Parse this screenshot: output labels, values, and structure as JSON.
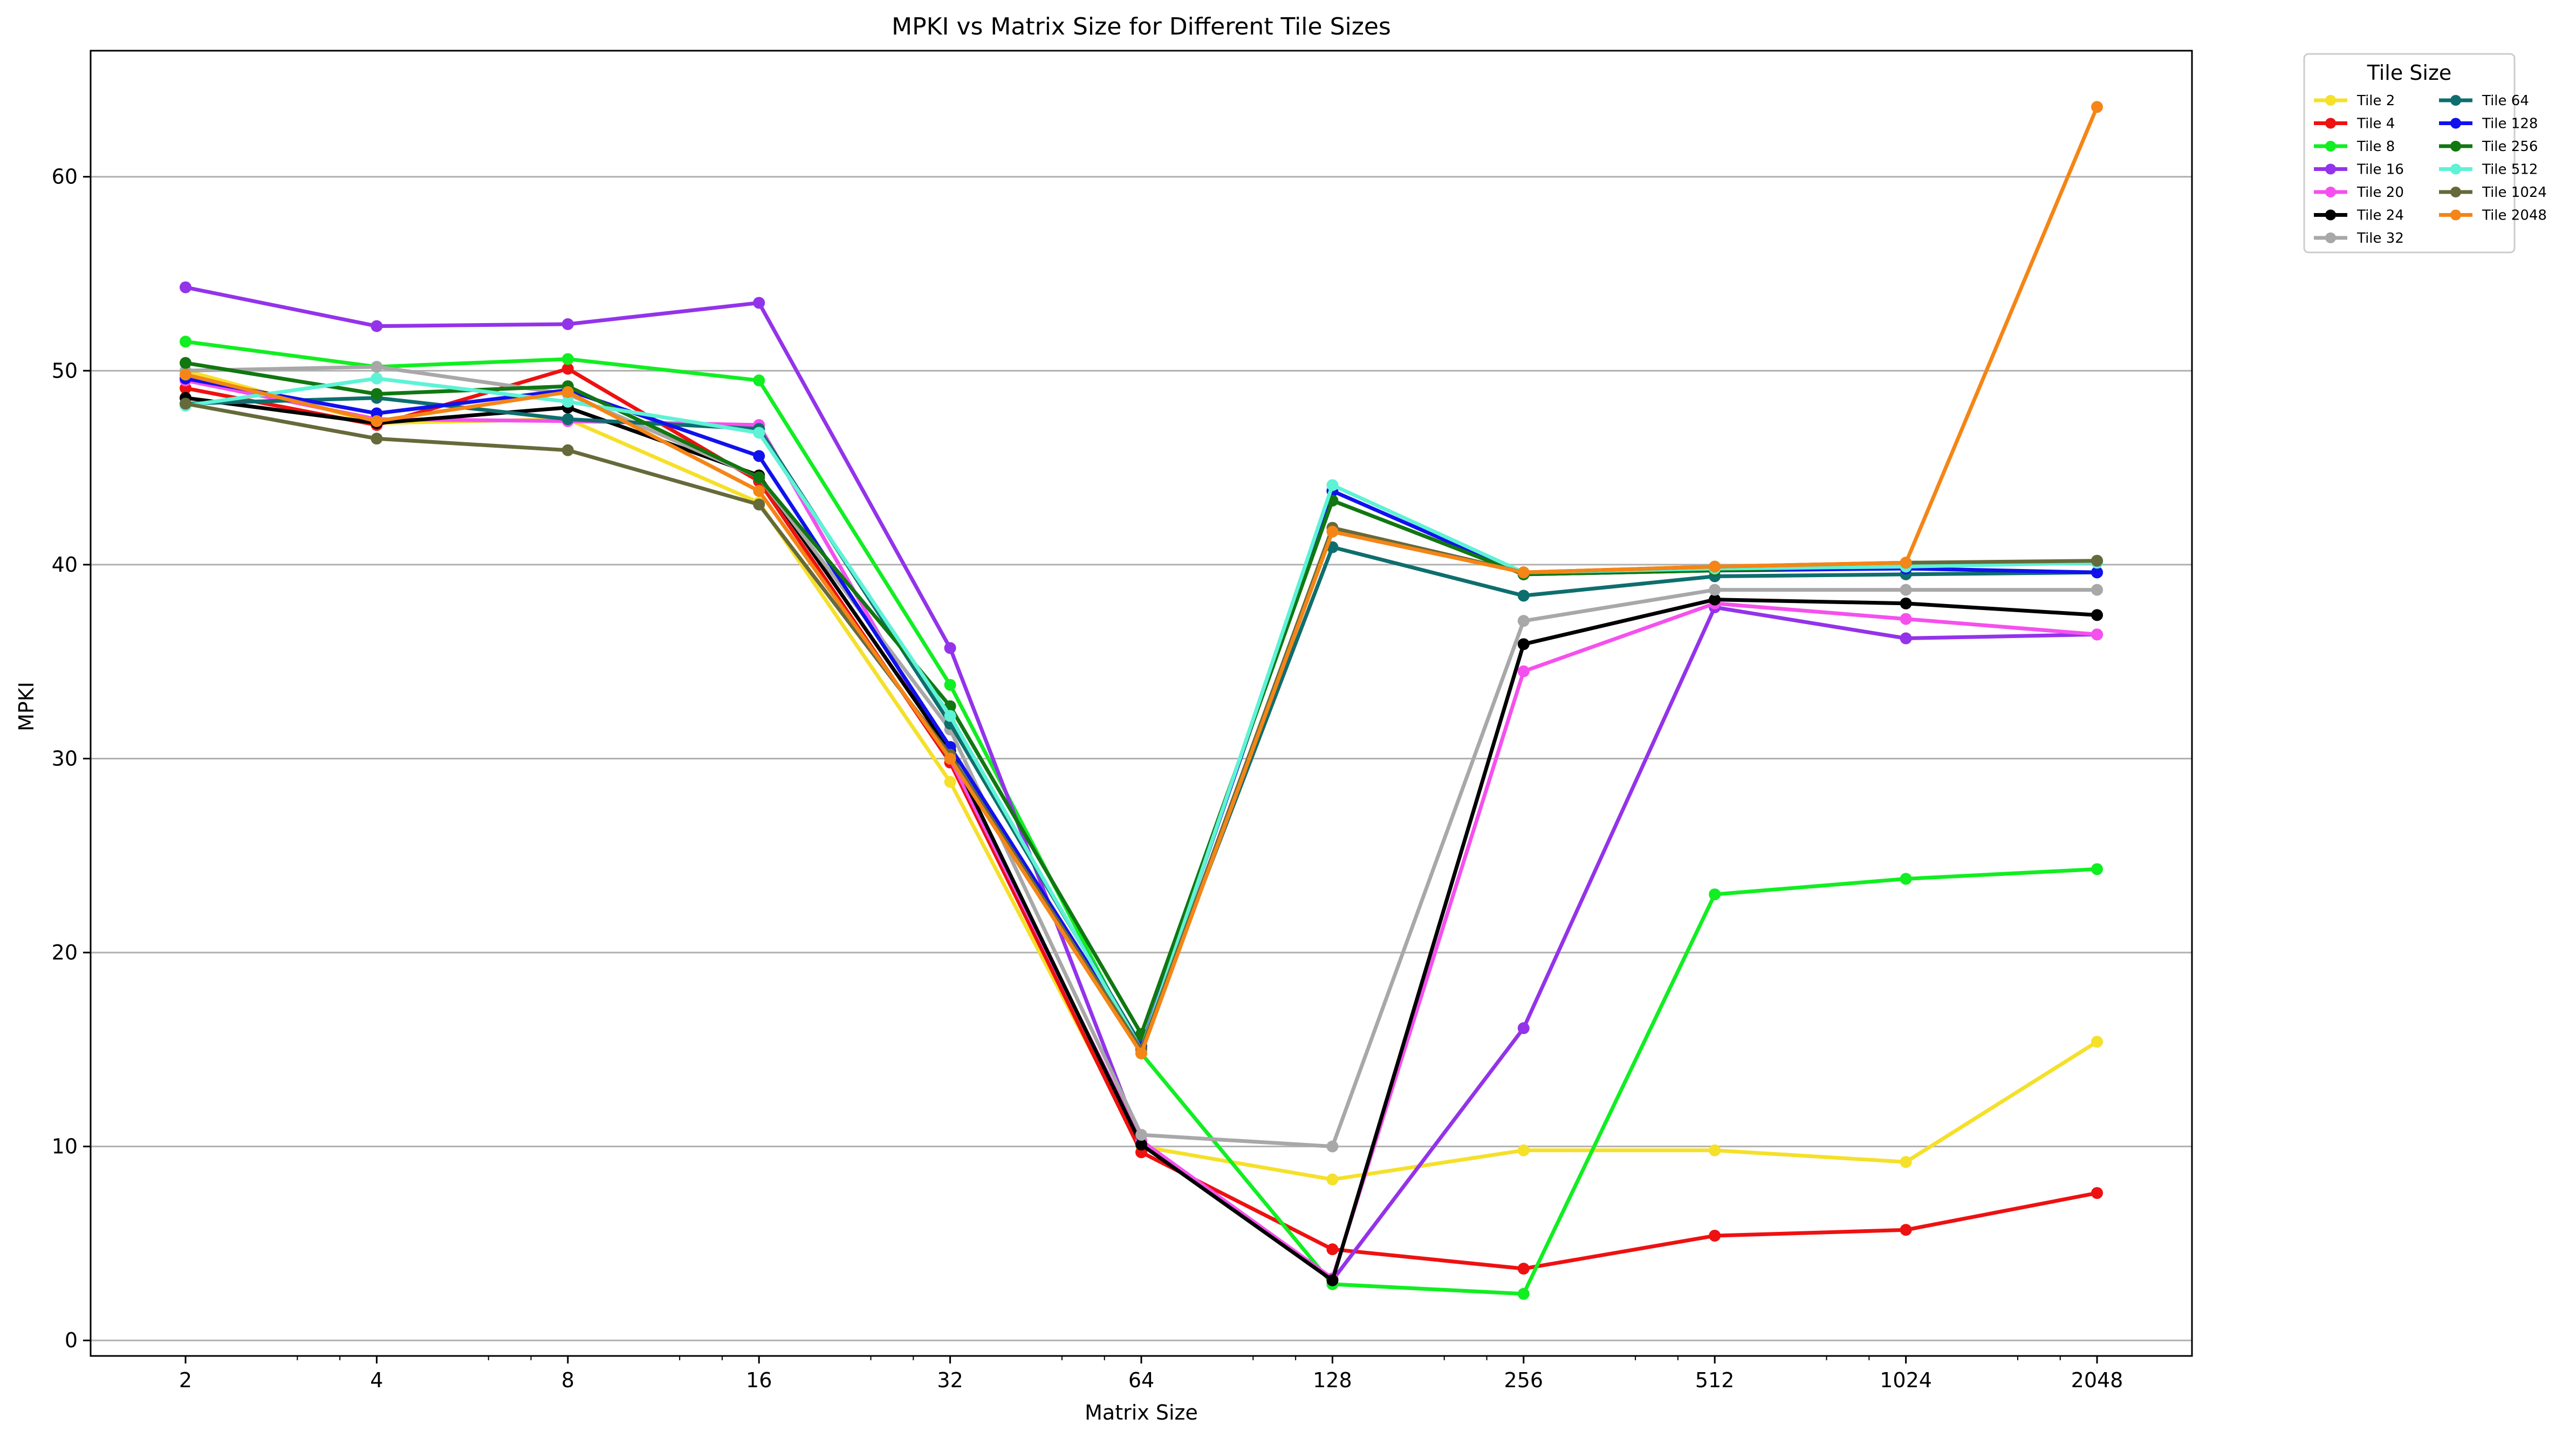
{
  "chart_data": {
    "type": "line",
    "title": "MPKI vs Matrix Size for Different Tile Sizes",
    "xlabel": "Matrix Size",
    "ylabel": "MPKI",
    "x_scale": "log2",
    "x": [
      2,
      4,
      8,
      16,
      32,
      64,
      128,
      256,
      512,
      1024,
      2048
    ],
    "xtick_labels": [
      "2",
      "4",
      "8",
      "16",
      "32",
      "64",
      "128",
      "256",
      "512",
      "1024",
      "2048"
    ],
    "ylim": [
      -0.8,
      66.5
    ],
    "yticks": [
      0,
      10,
      20,
      30,
      40,
      50,
      60
    ],
    "grid": "horizontal",
    "legend_title": "Tile Size",
    "legend_position": "outside-top-right",
    "series": [
      {
        "name": "Tile 2",
        "color": "#f5e02a",
        "values": [
          50.0,
          47.3,
          47.5,
          43.2,
          28.8,
          10.0,
          8.3,
          9.8,
          9.8,
          9.2,
          15.4
        ]
      },
      {
        "name": "Tile 4",
        "color": "#ee1111",
        "values": [
          49.1,
          47.2,
          50.1,
          44.3,
          29.8,
          9.7,
          4.7,
          3.7,
          5.4,
          5.7,
          7.6
        ]
      },
      {
        "name": "Tile 8",
        "color": "#11ee22",
        "values": [
          51.5,
          50.2,
          50.6,
          49.5,
          33.8,
          14.8,
          2.9,
          2.4,
          23.0,
          23.8,
          24.3
        ]
      },
      {
        "name": "Tile 16",
        "color": "#9333ea",
        "values": [
          54.3,
          52.3,
          52.4,
          53.5,
          35.7,
          10.2,
          3.1,
          16.1,
          37.8,
          36.2,
          36.4
        ]
      },
      {
        "name": "Tile 20",
        "color": "#f550ee",
        "values": [
          49.5,
          47.5,
          47.4,
          47.2,
          30.0,
          10.3,
          3.2,
          34.5,
          38.0,
          37.2,
          36.4
        ]
      },
      {
        "name": "Tile 24",
        "color": "#000000",
        "values": [
          48.6,
          47.3,
          48.1,
          44.6,
          30.4,
          10.1,
          3.1,
          35.9,
          38.2,
          38.0,
          37.4
        ]
      },
      {
        "name": "Tile 32",
        "color": "#a8a8a8",
        "values": [
          50.0,
          50.2,
          48.8,
          44.5,
          31.5,
          10.6,
          10.0,
          37.1,
          38.7,
          38.7,
          38.7
        ]
      },
      {
        "name": "Tile 64",
        "color": "#0e6e6e",
        "values": [
          48.3,
          48.6,
          47.5,
          47.0,
          31.8,
          15.2,
          40.9,
          38.4,
          39.4,
          39.5,
          39.6
        ]
      },
      {
        "name": "Tile 128",
        "color": "#1111ee",
        "values": [
          49.6,
          47.8,
          49.0,
          45.6,
          30.6,
          15.1,
          43.8,
          39.5,
          39.7,
          39.8,
          39.6
        ]
      },
      {
        "name": "Tile 256",
        "color": "#117711",
        "values": [
          50.4,
          48.8,
          49.2,
          44.5,
          32.7,
          15.8,
          43.3,
          39.5,
          39.7,
          40.0,
          40.2
        ]
      },
      {
        "name": "Tile 512",
        "color": "#5ef2d6",
        "values": [
          48.2,
          49.6,
          48.4,
          46.8,
          32.2,
          15.0,
          44.1,
          39.6,
          39.8,
          39.9,
          40.1
        ]
      },
      {
        "name": "Tile 1024",
        "color": "#666a3a",
        "values": [
          48.3,
          46.5,
          45.9,
          43.1,
          30.2,
          15.0,
          41.9,
          39.6,
          39.9,
          40.1,
          40.2
        ]
      },
      {
        "name": "Tile 2048",
        "color": "#f58516",
        "values": [
          49.8,
          47.4,
          48.9,
          43.8,
          30.0,
          14.8,
          41.7,
          39.6,
          39.9,
          40.1,
          63.6
        ]
      }
    ]
  }
}
